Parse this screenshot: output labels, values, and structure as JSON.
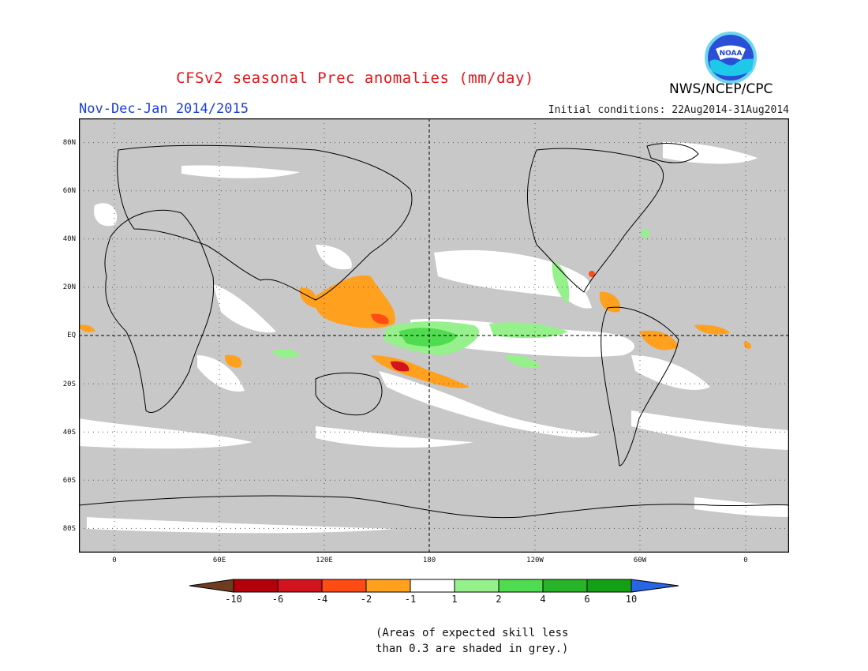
{
  "header": {
    "title": "CFSv2 seasonal Prec anomalies (mm/day)",
    "period": "Nov-Dec-Jan 2014/2015",
    "initial_conditions": "Initial conditions: 22Aug2014-31Aug2014",
    "agency": "NWS/NCEP/CPC",
    "logo_text": "NOAA"
  },
  "map": {
    "background_grey": "#c8c8c8",
    "lat_labels": [
      "80N",
      "60N",
      "40N",
      "20N",
      "EQ",
      "20S",
      "40S",
      "60S",
      "80S"
    ],
    "lon_labels": [
      "0",
      "60E",
      "120E",
      "180",
      "120W",
      "60W",
      "0"
    ]
  },
  "legend": {
    "ticks": [
      "-10",
      "-6",
      "-4",
      "-2",
      "-1",
      "1",
      "2",
      "4",
      "6",
      "10"
    ],
    "colors": [
      "#6e3c1e",
      "#b4000a",
      "#d2141e",
      "#ff4b14",
      "#ffa01e",
      "#ffffff",
      "#96f08c",
      "#50dc50",
      "#28b428",
      "#14a014",
      "#2864e6"
    ]
  },
  "note": {
    "line1": "(Areas of expected skill less",
    "line2": "than 0.3 are shaded in grey.)"
  }
}
